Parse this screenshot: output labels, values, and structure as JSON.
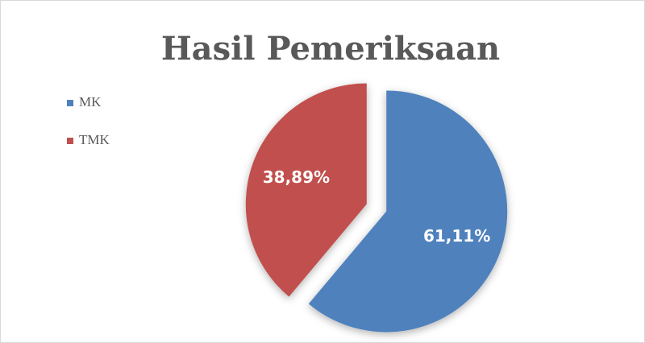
{
  "chart_data": {
    "type": "pie",
    "title": "Hasil Pemeriksaan",
    "categories": [
      "MK",
      "TMK"
    ],
    "values": [
      61.11,
      38.89
    ],
    "value_labels": [
      "61,11%",
      "38,89%"
    ],
    "colors": [
      "#4f81bd",
      "#c0504d"
    ],
    "legend": "top-left"
  }
}
